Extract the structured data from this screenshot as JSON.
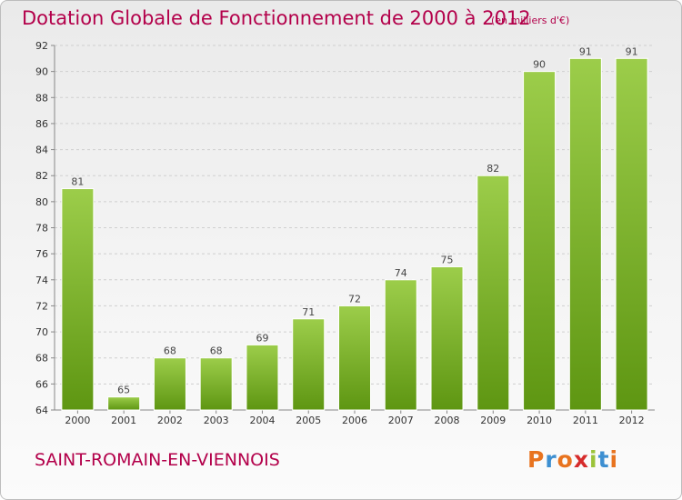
{
  "header": {
    "title": "Dotation Globale de Fonctionnement de 2000 à 2012",
    "unit": "(en milliers d'€)"
  },
  "footer": {
    "commune": "SAINT-ROMAIN-EN-VIENNOIS",
    "brand": "Proxiti"
  },
  "colors": {
    "title": "#b3004a",
    "bar_light": "#9ccd4a",
    "bar_dark": "#5e9612",
    "brand_letters": [
      "#e8731f",
      "#3d8fd1",
      "#e8731f",
      "#d62b2b",
      "#9bc33a",
      "#3d8fd1",
      "#e8731f"
    ]
  },
  "chart_data": {
    "type": "bar",
    "categories": [
      "2000",
      "2001",
      "2002",
      "2003",
      "2004",
      "2005",
      "2006",
      "2007",
      "2008",
      "2009",
      "2010",
      "2011",
      "2012"
    ],
    "values": [
      81,
      65,
      68,
      68,
      69,
      71,
      72,
      74,
      75,
      82,
      90,
      91,
      91
    ],
    "data_labels": [
      "81",
      "65",
      "68",
      "68",
      "69",
      "71",
      "72",
      "74",
      "75",
      "82",
      "90",
      "91",
      "91"
    ],
    "title": "Dotation Globale de Fonctionnement de 2000 à 2012",
    "xlabel": "",
    "ylabel": "",
    "ylim": [
      64,
      92
    ],
    "yticks": [
      64,
      66,
      68,
      70,
      72,
      74,
      76,
      78,
      80,
      82,
      84,
      86,
      88,
      90,
      92
    ],
    "grid": true
  }
}
